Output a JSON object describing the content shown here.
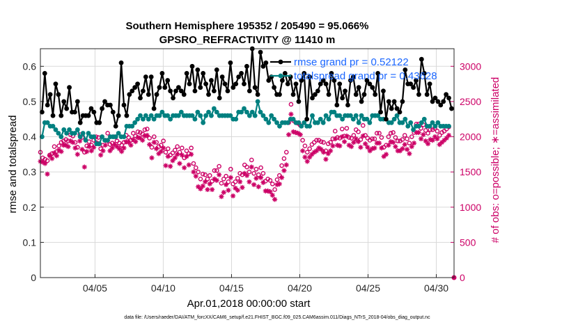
{
  "chart_data": {
    "type": "line",
    "title_line1": "Southern Hemisphere 195352 / 205490 = 95.066%",
    "title_line2": "GPSRO_REFRACTIVITY @ 11410 m",
    "xlabel": "Apr.01,2018 00:00:00 start",
    "ylabel_left": "rmse and totalspread",
    "ylabel_right": "# of obs: o=possible; ∗=assimilated",
    "xlim": [
      1.0,
      31.3
    ],
    "ylim_left": [
      0,
      0.65
    ],
    "ylim_right": [
      0,
      3250
    ],
    "x_ticks": [
      5,
      10,
      15,
      20,
      25,
      30
    ],
    "x_tick_labels": [
      "04/05",
      "04/10",
      "04/15",
      "04/20",
      "04/25",
      "04/30"
    ],
    "y_left_ticks": [
      "0",
      "0.1",
      "0.2",
      "0.3",
      "0.4",
      "0.5",
      "0.6"
    ],
    "y_right_ticks": [
      "0",
      "500",
      "1000",
      "1500",
      "2000",
      "2500",
      "3000"
    ],
    "grid": true,
    "legend_position": "top-right",
    "footer": "data file: /Users/raeder/DAI/ATM_forcXX/CAM6_setup/f.e21.FHIST_BGC.f09_025.CAM6assim.011/Diags_NTrS_2018-04/obs_diag_output.nc",
    "colors": {
      "rmse": "#000000",
      "spread": "#008080",
      "obs": "#cc0066",
      "legend_text": "#1a66ff"
    },
    "series": [
      {
        "name": "rmse grand pr = 0.52122",
        "axis": "left",
        "values": [
          0.47,
          0.58,
          0.49,
          0.52,
          0.46,
          0.55,
          0.52,
          0.46,
          0.5,
          0.48,
          0.54,
          0.47,
          0.47,
          0.5,
          0.44,
          0.46,
          0.46,
          0.46,
          0.48,
          0.47,
          0.44,
          0.44,
          0.48,
          0.5,
          0.49,
          0.49,
          0.47,
          0.43,
          0.46,
          0.61,
          0.49,
          0.46,
          0.52,
          0.53,
          0.54,
          0.55,
          0.51,
          0.53,
          0.57,
          0.52,
          0.57,
          0.48,
          0.52,
          0.54,
          0.58,
          0.54,
          0.56,
          0.53,
          0.51,
          0.53,
          0.54,
          0.53,
          0.52,
          0.58,
          0.55,
          0.6,
          0.53,
          0.59,
          0.54,
          0.58,
          0.55,
          0.52,
          0.56,
          0.53,
          0.59,
          0.51,
          0.57,
          0.55,
          0.53,
          0.61,
          0.54,
          0.55,
          0.57,
          0.58,
          0.55,
          0.6,
          0.53,
          0.65,
          0.54,
          0.52,
          0.64,
          0.6,
          0.61,
          0.56,
          0.57,
          0.54,
          0.52,
          0.52,
          0.56,
          0.58,
          0.55,
          0.57,
          0.52,
          0.55,
          0.5,
          0.56,
          0.58,
          0.45,
          0.57,
          0.51,
          0.52,
          0.53,
          0.55,
          0.56,
          0.55,
          0.52,
          0.58,
          0.56,
          0.49,
          0.55,
          0.51,
          0.53,
          0.49,
          0.56,
          0.57,
          0.52,
          0.54,
          0.5,
          0.52,
          0.56,
          0.55,
          0.54,
          0.52,
          0.58,
          0.47,
          0.53,
          0.45,
          0.5,
          0.48,
          0.5,
          0.48,
          0.47,
          0.5,
          0.59,
          0.55,
          0.55,
          0.54,
          0.56,
          0.52,
          0.62,
          0.58,
          0.52,
          0.55,
          0.5,
          0.51,
          0.5,
          0.49,
          0.5,
          0.52,
          0.51,
          0.48
        ],
        "x_start": 1.12,
        "x_step": 0.2
      },
      {
        "name": "totalspread grand pr = 0.43628",
        "axis": "left",
        "values": [
          0.4,
          0.44,
          0.44,
          0.43,
          0.43,
          0.42,
          0.41,
          0.4,
          0.42,
          0.41,
          0.42,
          0.41,
          0.41,
          0.42,
          0.4,
          0.41,
          0.39,
          0.41,
          0.4,
          0.4,
          0.38,
          0.38,
          0.4,
          0.39,
          0.39,
          0.4,
          0.4,
          0.4,
          0.41,
          0.4,
          0.4,
          0.43,
          0.43,
          0.43,
          0.44,
          0.45,
          0.46,
          0.45,
          0.46,
          0.45,
          0.46,
          0.45,
          0.46,
          0.46,
          0.47,
          0.46,
          0.46,
          0.45,
          0.46,
          0.46,
          0.46,
          0.47,
          0.46,
          0.46,
          0.46,
          0.46,
          0.45,
          0.47,
          0.46,
          0.44,
          0.46,
          0.47,
          0.46,
          0.48,
          0.47,
          0.46,
          0.46,
          0.46,
          0.46,
          0.46,
          0.45,
          0.45,
          0.47,
          0.47,
          0.48,
          0.47,
          0.46,
          0.47,
          0.46,
          0.5,
          0.47,
          0.46,
          0.45,
          0.44,
          0.46,
          0.45,
          0.44,
          0.43,
          0.44,
          0.44,
          0.44,
          0.45,
          0.45,
          0.44,
          0.44,
          0.43,
          0.44,
          0.43,
          0.43,
          0.46,
          0.44,
          0.44,
          0.45,
          0.44,
          0.46,
          0.45,
          0.47,
          0.47,
          0.46,
          0.46,
          0.45,
          0.46,
          0.46,
          0.46,
          0.45,
          0.46,
          0.44,
          0.46,
          0.45,
          0.45,
          0.44,
          0.46,
          0.46,
          0.46,
          0.45,
          0.45,
          0.45,
          0.44,
          0.44,
          0.45,
          0.46,
          0.44,
          0.44,
          0.45,
          0.43,
          0.44,
          0.42,
          0.43,
          0.43,
          0.44,
          0.45,
          0.43,
          0.43,
          0.44,
          0.43,
          0.44,
          0.43,
          0.43,
          0.43,
          0.43
        ],
        "x_start": 1.12,
        "x_step": 0.2
      },
      {
        "name": "possible",
        "axis": "right",
        "marker": "o",
        "values": [
          1780,
          1700,
          1680,
          1660,
          1740,
          1760,
          1860,
          1790,
          1870,
          1920,
          1940,
          1960,
          1940,
          2030,
          2010,
          1920,
          1850,
          2030,
          1990,
          1780,
          1870,
          1930,
          1880,
          1950,
          2000,
          1990,
          1830,
          1880,
          1950,
          2050,
          1890,
          1910,
          2000,
          1940,
          1910,
          1880,
          1920,
          2020,
          1990,
          1950,
          2050,
          2010,
          2070,
          2060,
          2040,
          2100,
          2110,
          1980,
          1850,
          2000,
          1920,
          1860,
          1880,
          1940,
          1780,
          1830,
          1740,
          1770,
          1810,
          1860,
          1780,
          1840,
          1700,
          1800,
          1760,
          1840,
          1620,
          1560,
          1500,
          1400,
          1470,
          1460,
          1400,
          1450,
          1370,
          1520,
          1520,
          1580,
          1340,
          1400,
          1440,
          1360,
          1540,
          1330,
          1360,
          1410,
          1480,
          1460,
          1600,
          1570,
          1500,
          1670,
          1480,
          1540,
          1460,
          1560,
          1480,
          1370,
          1400,
          1380,
          1330,
          1250,
          1390,
          1450,
          1590,
          1690,
          1780,
          2200,
          2460,
          2230,
          2200,
          2190,
          2160,
          1950,
          1870,
          1780,
          1830,
          1890,
          1920,
          1950,
          1950,
          1930,
          1920,
          1800,
          1900,
          1920,
          1970,
          2080,
          1990,
          1980,
          2110,
          2010,
          2120,
          1990,
          1980,
          2020,
          2100,
          2070,
          1960,
          2160,
          2020,
          1980,
          1950,
          1970,
          1970,
          2050,
          2050,
          1990,
          1850,
          1880,
          2000,
          2050,
          2060,
          1990,
          1940,
          1940,
          1960,
          2020,
          1970,
          1910,
          2000,
          2060,
          2180,
          2180,
          2120,
          2170,
          2090,
          2050,
          2100,
          2100,
          2120,
          2080,
          2020,
          2060,
          2080,
          2110,
          2140
        ],
        "x_start": 1.0,
        "x_step": 0.17
      },
      {
        "name": "assimilated",
        "axis": "right",
        "marker": "*",
        "values": [
          1650,
          1640,
          1620,
          1470,
          1730,
          1690,
          1770,
          1730,
          1810,
          1790,
          1880,
          1880,
          1860,
          1940,
          1920,
          1840,
          1750,
          1940,
          1820,
          1570,
          1790,
          1860,
          1800,
          1850,
          1920,
          1900,
          1740,
          1800,
          1880,
          1940,
          1800,
          1840,
          1890,
          1860,
          1830,
          1790,
          1840,
          1930,
          1920,
          1880,
          1960,
          1930,
          1990,
          1980,
          1950,
          2010,
          2020,
          1890,
          1700,
          1920,
          1830,
          1760,
          1790,
          1840,
          1590,
          1720,
          1580,
          1660,
          1700,
          1750,
          1620,
          1740,
          1560,
          1720,
          1600,
          1750,
          1500,
          1440,
          1290,
          1260,
          1300,
          1360,
          1250,
          1330,
          1250,
          1400,
          1380,
          1460,
          1150,
          1210,
          1320,
          1240,
          1420,
          1160,
          1270,
          1240,
          1360,
          1280,
          1480,
          1450,
          1360,
          1570,
          1320,
          1410,
          1290,
          1420,
          1350,
          1230,
          1230,
          1220,
          1170,
          1110,
          1320,
          1330,
          1420,
          1520,
          1600,
          2030,
          2320,
          2070,
          2060,
          2050,
          2030,
          1800,
          1710,
          1650,
          1710,
          1750,
          1780,
          1800,
          1840,
          1820,
          1780,
          1680,
          1760,
          1800,
          1870,
          1970,
          1880,
          1870,
          2000,
          1930,
          2010,
          1880,
          1860,
          1920,
          1970,
          1930,
          1850,
          2010,
          1900,
          1850,
          1800,
          1830,
          1840,
          1910,
          1910,
          1840,
          1720,
          1750,
          1880,
          1930,
          1920,
          1860,
          1800,
          1800,
          1830,
          1890,
          1820,
          1760,
          1860,
          1910,
          2060,
          2060,
          1970,
          2030,
          1940,
          1900,
          1960,
          1950,
          2000,
          1970,
          1890,
          1920,
          1950,
          1980,
          2020
        ],
        "x_start": 1.0,
        "x_step": 0.17
      }
    ]
  }
}
